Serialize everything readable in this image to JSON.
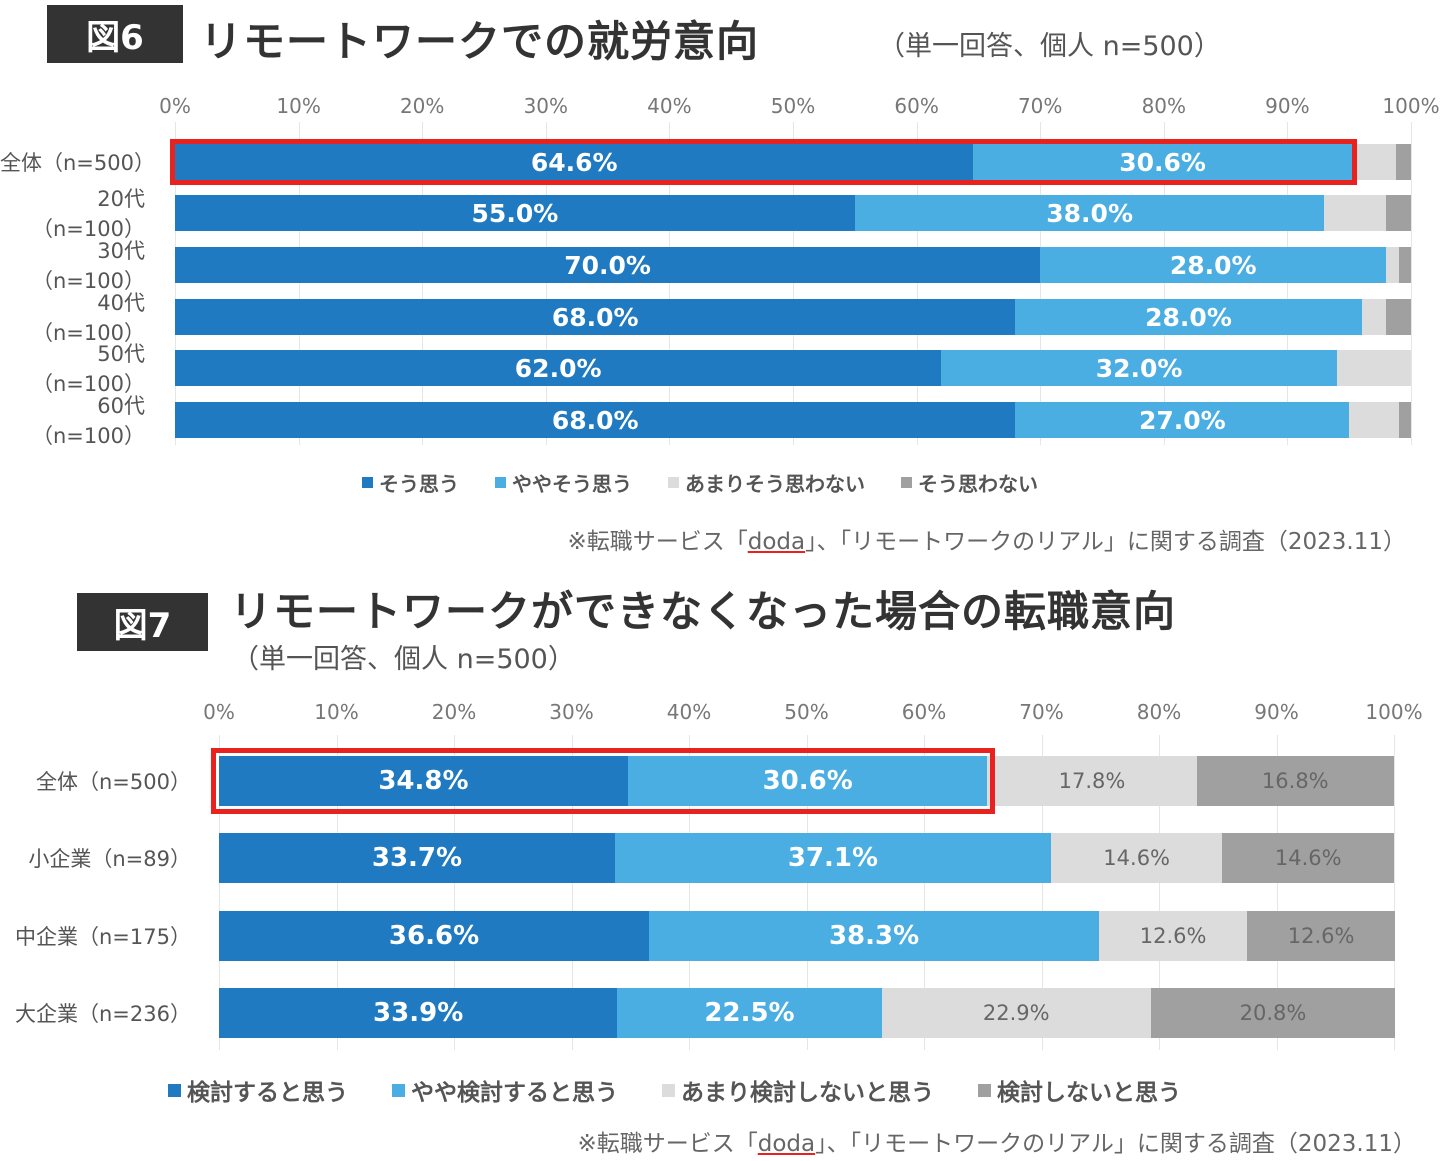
{
  "colors": {
    "strong_agree": "#1f7ac2",
    "agree": "#4aaee3",
    "disagree": "#dcdcdc",
    "strong_disagree": "#a0a0a0",
    "highlight": "#e8231f"
  },
  "chart_data": [
    {
      "type": "bar",
      "orientation": "horizontal-stacked-100",
      "badge": "図6",
      "title": "リモートワークでの就労意向",
      "subtitle": "（単一回答、個人 n=500）",
      "xlim": [
        0,
        100
      ],
      "ticks": [
        "0%",
        "10%",
        "20%",
        "30%",
        "40%",
        "50%",
        "60%",
        "70%",
        "80%",
        "90%",
        "100%"
      ],
      "grid": true,
      "legend_position": "bottom",
      "categories": [
        "全体（n=500）",
        "20代（n=100）",
        "30代（n=100）",
        "40代（n=100）",
        "50代（n=100）",
        "60代（n=100）"
      ],
      "series": [
        {
          "name": "そう思う",
          "values": [
            64.6,
            55.0,
            70.0,
            68.0,
            62.0,
            68.0
          ],
          "labels": [
            "64.6%",
            "55.0%",
            "70.0%",
            "68.0%",
            "62.0%",
            "68.0%"
          ]
        },
        {
          "name": "ややそう思う",
          "values": [
            30.6,
            38.0,
            28.0,
            28.0,
            32.0,
            27.0
          ],
          "labels": [
            "30.6%",
            "38.0%",
            "28.0%",
            "28.0%",
            "32.0%",
            "27.0%"
          ]
        },
        {
          "name": "あまりそう思わない",
          "values": [
            3.6,
            5.0,
            1.0,
            2.0,
            6.0,
            4.0
          ]
        },
        {
          "name": "そう思わない",
          "values": [
            1.2,
            2.0,
            1.0,
            2.0,
            0.0,
            1.0
          ]
        }
      ],
      "highlight_row": 0,
      "highlight_series": [
        0,
        1
      ],
      "source": {
        "prefix": "※転職サービス「",
        "brand": "doda",
        "suffix": "」、「リモートワークのリアル」に関する調査（2023.11）"
      }
    },
    {
      "type": "bar",
      "orientation": "horizontal-stacked-100",
      "badge": "図7",
      "title": "リモートワークができなくなった場合の転職意向",
      "subtitle": "（単一回答、個人 n=500）",
      "xlim": [
        0,
        100
      ],
      "ticks": [
        "0%",
        "10%",
        "20%",
        "30%",
        "40%",
        "50%",
        "60%",
        "70%",
        "80%",
        "90%",
        "100%"
      ],
      "grid": true,
      "legend_position": "bottom",
      "categories": [
        "全体（n=500）",
        "小企業（n=89）",
        "中企業（n=175）",
        "大企業（n=236）"
      ],
      "series": [
        {
          "name": "検討すると思う",
          "values": [
            34.8,
            33.7,
            36.6,
            33.9
          ],
          "labels": [
            "34.8%",
            "33.7%",
            "36.6%",
            "33.9%"
          ]
        },
        {
          "name": "やや検討すると思う",
          "values": [
            30.6,
            37.1,
            38.3,
            22.5
          ],
          "labels": [
            "30.6%",
            "37.1%",
            "38.3%",
            "22.5%"
          ]
        },
        {
          "name": "あまり検討しないと思う",
          "values": [
            17.8,
            14.6,
            12.6,
            22.9
          ],
          "labels": [
            "17.8%",
            "14.6%",
            "12.6%",
            "22.9%"
          ]
        },
        {
          "name": "検討しないと思う",
          "values": [
            16.8,
            14.6,
            12.6,
            20.8
          ],
          "labels": [
            "16.8%",
            "14.6%",
            "12.6%",
            "20.8%"
          ]
        }
      ],
      "highlight_row": 0,
      "highlight_series": [
        0,
        1
      ],
      "source": {
        "prefix": "※転職サービス「",
        "brand": "doda",
        "suffix": "」、「リモートワークのリアル」に関する調査（2023.11）"
      }
    }
  ]
}
